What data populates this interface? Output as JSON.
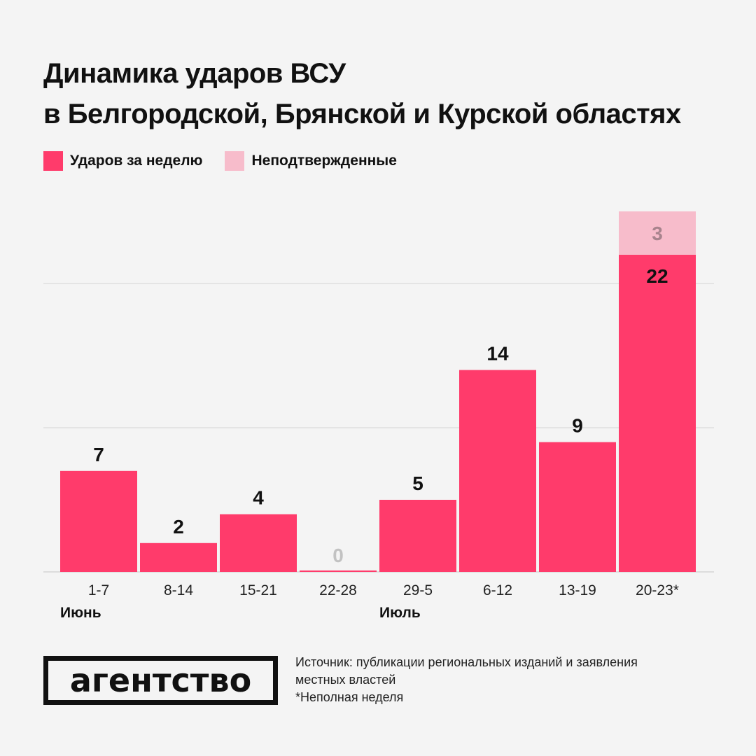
{
  "title": {
    "line1": "Динамика ударов ВСУ",
    "line2": "в Белгородской, Брянской и Курской областях"
  },
  "legend": [
    {
      "label": "Ударов за неделю",
      "color": "#ff3b6b"
    },
    {
      "label": "Неподтвержденные",
      "color": "#f7bccb"
    }
  ],
  "months": [
    {
      "label": "Июнь",
      "category": "1-7"
    },
    {
      "label": "Июль",
      "category": "29-5"
    }
  ],
  "chart_data": {
    "type": "bar",
    "stacked": true,
    "categories": [
      "1-7",
      "8-14",
      "15-21",
      "22-28",
      "29-5",
      "6-12",
      "13-19",
      "20-23*"
    ],
    "series": [
      {
        "name": "Ударов за неделю",
        "values": [
          7,
          2,
          4,
          0,
          5,
          14,
          9,
          22
        ],
        "color": "#ff3b6b"
      },
      {
        "name": "Неподтвержденные",
        "values": [
          0,
          0,
          0,
          0,
          0,
          0,
          0,
          3
        ],
        "color": "#f7bccb"
      }
    ],
    "ylim": [
      0,
      25
    ],
    "gridlines": [
      0,
      10,
      20
    ],
    "grid": true,
    "legend_position": "top-left"
  },
  "logo": {
    "text": "агентство"
  },
  "footnote": {
    "line1": "Источник: публикации региональных изданий и заявления",
    "line2": "местных властей",
    "line3": "*Неполная неделя"
  }
}
